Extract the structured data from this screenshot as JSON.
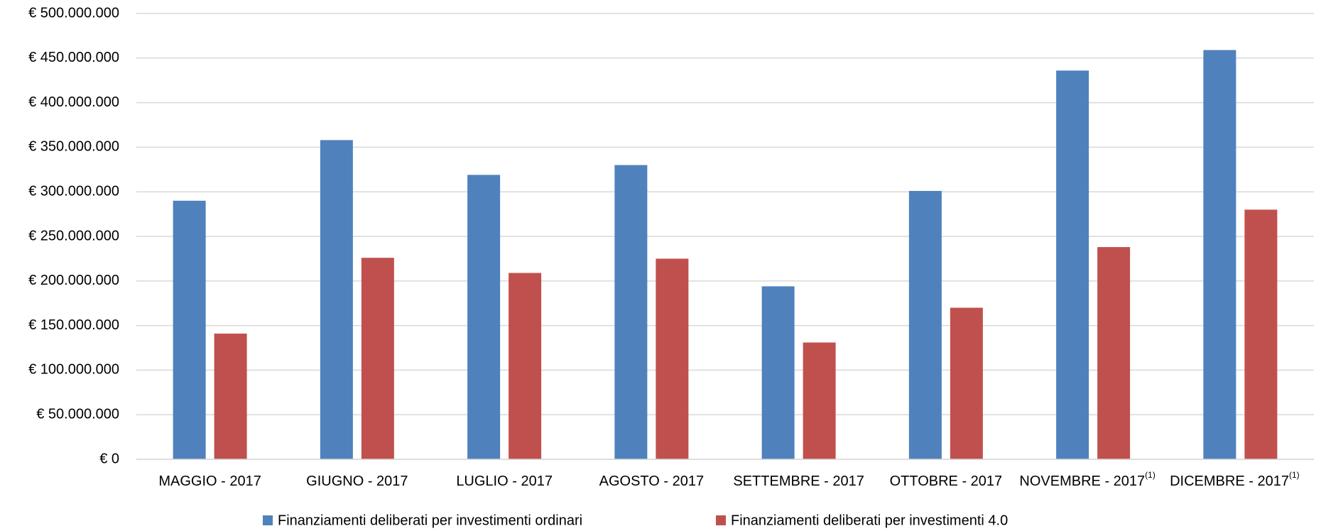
{
  "chart_data": {
    "type": "bar",
    "categories": [
      "MAGGIO - 2017",
      "GIUGNO - 2017",
      "LUGLIO - 2017",
      "AGOSTO - 2017",
      "SETTEMBRE - 2017",
      "OTTOBRE - 2017",
      "NOVEMBRE - 2017",
      "DICEMBRE - 2017"
    ],
    "footnote_marks": {
      "6": "(1)",
      "7": "(1)"
    },
    "series": [
      {
        "name": "Finanziamenti deliberati per investimenti ordinari",
        "color": "#4f81bd",
        "values": [
          290000000,
          358000000,
          319000000,
          330000000,
          194000000,
          301000000,
          436000000,
          459000000
        ]
      },
      {
        "name": "Finanziamenti deliberati per investimenti 4.0",
        "color": "#c0504d",
        "values": [
          141000000,
          226000000,
          209000000,
          225000000,
          131000000,
          170000000,
          238000000,
          280000000
        ]
      }
    ],
    "ylim": [
      0,
      500000000
    ],
    "yticks": [
      {
        "value": 0,
        "label": "€ 0"
      },
      {
        "value": 50000000,
        "label": "€ 50.000.000"
      },
      {
        "value": 100000000,
        "label": "€ 100.000.000"
      },
      {
        "value": 150000000,
        "label": "€ 150.000.000"
      },
      {
        "value": 200000000,
        "label": "€ 200.000.000"
      },
      {
        "value": 250000000,
        "label": "€ 250.000.000"
      },
      {
        "value": 300000000,
        "label": "€ 300.000.000"
      },
      {
        "value": 350000000,
        "label": "€ 350.000.000"
      },
      {
        "value": 400000000,
        "label": "€ 400.000.000"
      },
      {
        "value": 450000000,
        "label": "€ 450.000.000"
      },
      {
        "value": 500000000,
        "label": "€ 500.000.000"
      }
    ],
    "grid": true,
    "legend": "bottom"
  }
}
